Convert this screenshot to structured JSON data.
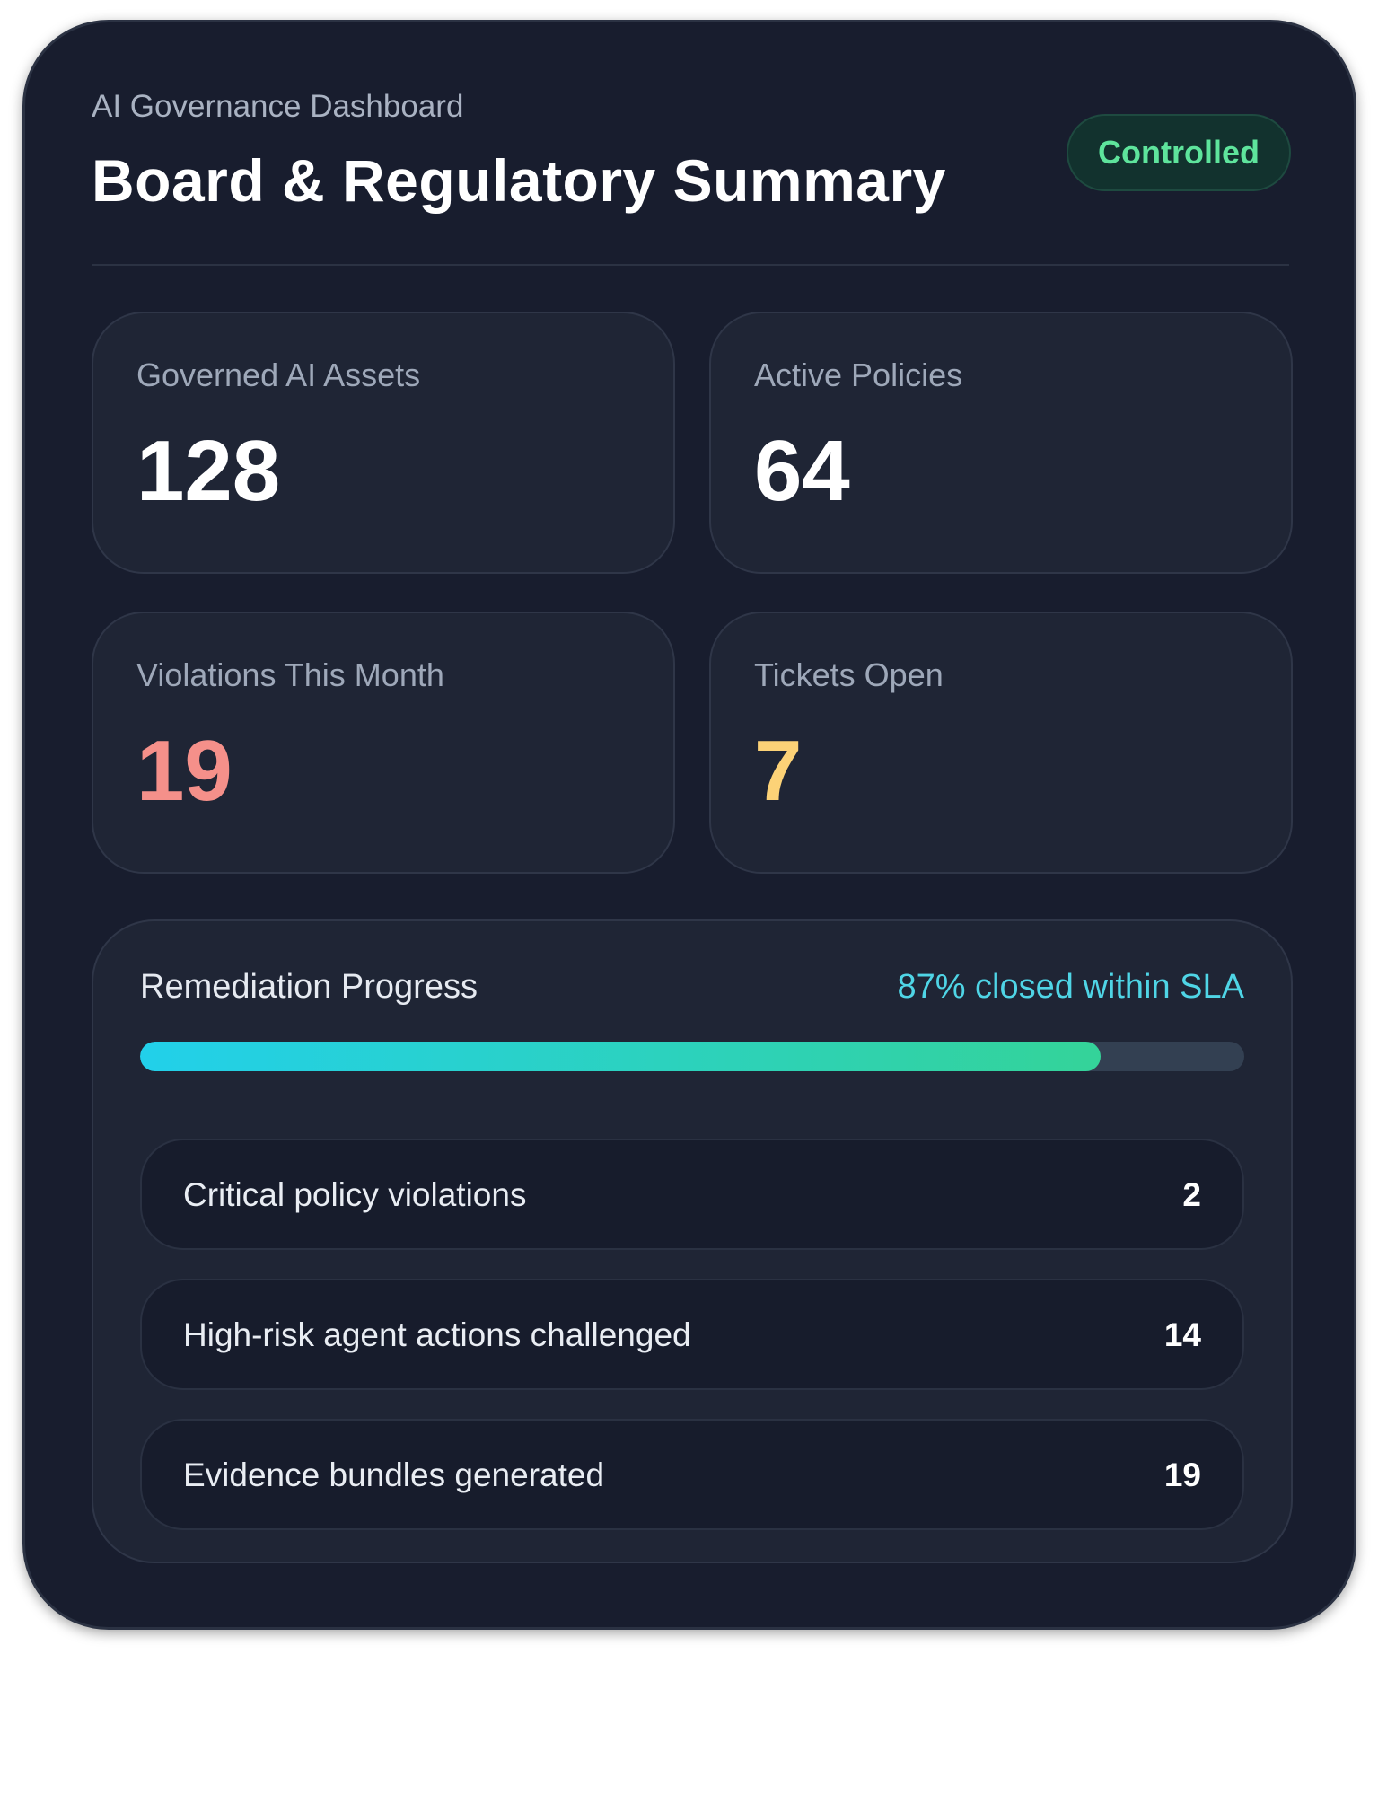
{
  "header": {
    "eyebrow": "AI Governance Dashboard",
    "title": "Board & Regulatory Summary",
    "status_badge": "Controlled"
  },
  "stats": [
    {
      "label": "Governed AI Assets",
      "value": "128"
    },
    {
      "label": "Active Policies",
      "value": "64"
    },
    {
      "label": "Violations This Month",
      "value": "19"
    },
    {
      "label": "Tickets Open",
      "value": "7"
    }
  ],
  "remediation": {
    "title": "Remediation Progress",
    "sla_text": "87% closed within SLA",
    "progress_percent": 87,
    "items": [
      {
        "label": "Critical policy violations",
        "value": "2"
      },
      {
        "label": "High-risk agent actions challenged",
        "value": "14"
      },
      {
        "label": "Evidence bundles generated",
        "value": "19"
      }
    ]
  },
  "colors": {
    "background": "#181d2e",
    "panel": "#1f2535",
    "badge_text": "#5ee49c",
    "violations_value": "#f5908a",
    "tickets_value": "#fcd277",
    "sla_text": "#4fd5e6",
    "progress_start": "#22d0ea",
    "progress_end": "#34d399"
  }
}
